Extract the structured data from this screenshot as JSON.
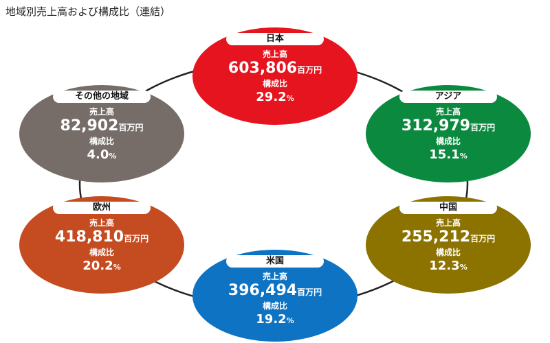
{
  "title": "地域別売上高および構成比（連結）",
  "labels": {
    "sales": "売上高",
    "composition": "構成比",
    "unit": "百万円",
    "percent_sign": "%"
  },
  "colors": {
    "japan": "#e5141e",
    "asia": "#0b8a3f",
    "china": "#8c7300",
    "usa": "#0e73c3",
    "europe": "#c54b21",
    "other": "#766d68",
    "ring": "#222222"
  },
  "regions": {
    "japan": {
      "name": "日本",
      "sales": "603,806",
      "share": "29.2"
    },
    "asia": {
      "name": "アジア",
      "sales": "312,979",
      "share": "15.1"
    },
    "china": {
      "name": "中国",
      "sales": "255,212",
      "share": "12.3"
    },
    "usa": {
      "name": "米国",
      "sales": "396,494",
      "share": "19.2"
    },
    "europe": {
      "name": "欧州",
      "sales": "418,810",
      "share": "20.2"
    },
    "other": {
      "name": "その他の地域",
      "sales": "82,902",
      "share": "4.0"
    }
  }
}
